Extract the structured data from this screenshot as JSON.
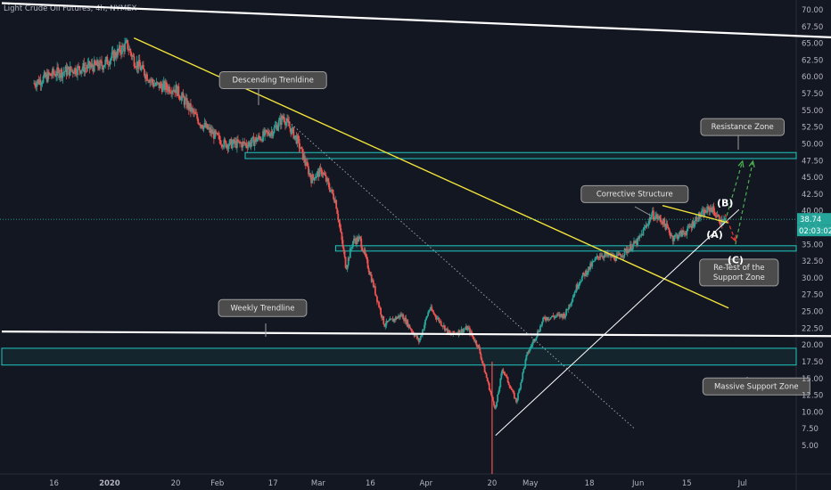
{
  "chart_data": {
    "type": "candlestick",
    "title": "Light Crude Oil Futures, 4h, NYMEX",
    "ylim": [
      2.5,
      71.5
    ],
    "y_ticks": [
      5.0,
      7.5,
      10.0,
      12.5,
      15.0,
      17.5,
      20.0,
      22.5,
      25.0,
      27.5,
      30.0,
      32.5,
      35.0,
      37.5,
      40.0,
      42.5,
      45.0,
      47.5,
      50.0,
      52.5,
      55.0,
      57.5,
      60.0,
      62.5,
      65.0,
      67.5,
      70.0
    ],
    "x_ticks": [
      "16",
      "2020",
      "20",
      "Feb",
      "17",
      "Mar",
      "16",
      "Apr",
      "20",
      "May",
      "18",
      "Jun",
      "15",
      "Jul"
    ],
    "price_path": [
      [
        "2019-12-10",
        59.0
      ],
      [
        "2019-12-16",
        60.5
      ],
      [
        "2019-12-23",
        61.2
      ],
      [
        "2019-12-30",
        61.8
      ],
      [
        "2020-01-06",
        64.8
      ],
      [
        "2020-01-08",
        62.5
      ],
      [
        "2020-01-14",
        58.8
      ],
      [
        "2020-01-20",
        58.2
      ],
      [
        "2020-01-27",
        53.2
      ],
      [
        "2020-02-03",
        50.0
      ],
      [
        "2020-02-10",
        50.0
      ],
      [
        "2020-02-17",
        52.0
      ],
      [
        "2020-02-20",
        54.0
      ],
      [
        "2020-02-24",
        50.5
      ],
      [
        "2020-02-28",
        44.8
      ],
      [
        "2020-03-02",
        46.0
      ],
      [
        "2020-03-06",
        41.5
      ],
      [
        "2020-03-09",
        31.5
      ],
      [
        "2020-03-11",
        35.5
      ],
      [
        "2020-03-13",
        35.8
      ],
      [
        "2020-03-16",
        30.5
      ],
      [
        "2020-03-20",
        23.0
      ],
      [
        "2020-03-25",
        24.5
      ],
      [
        "2020-03-30",
        20.5
      ],
      [
        "2020-04-02",
        25.5
      ],
      [
        "2020-04-08",
        21.5
      ],
      [
        "2020-04-13",
        22.5
      ],
      [
        "2020-04-16",
        19.8
      ],
      [
        "2020-04-20",
        12.0
      ],
      [
        "2020-04-21",
        10.5
      ],
      [
        "2020-04-23",
        16.5
      ],
      [
        "2020-04-27",
        11.5
      ],
      [
        "2020-04-30",
        18.5
      ],
      [
        "2020-05-05",
        24.0
      ],
      [
        "2020-05-11",
        24.5
      ],
      [
        "2020-05-15",
        29.5
      ],
      [
        "2020-05-21",
        33.5
      ],
      [
        "2020-05-26",
        33.0
      ],
      [
        "2020-06-01",
        35.5
      ],
      [
        "2020-06-05",
        39.5
      ],
      [
        "2020-06-08",
        38.5
      ],
      [
        "2020-06-11",
        36.0
      ],
      [
        "2020-06-15",
        37.0
      ],
      [
        "2020-06-18",
        39.0
      ],
      [
        "2020-06-22",
        40.5
      ],
      [
        "2020-06-25",
        38.2
      ],
      [
        "2020-06-26",
        38.74
      ]
    ],
    "current_price": 38.74,
    "countdown": "02:03:02",
    "zones": [
      {
        "name": "Resistance Zone",
        "from": 47.8,
        "to": 48.7,
        "start": "2020-02-09",
        "color": "#21c7c0"
      },
      {
        "name": "Re-Test of the Support Zone",
        "from": 34.0,
        "to": 34.8,
        "start": "2020-03-06",
        "color": "#21c7c0"
      },
      {
        "name": "Massive Support Zone",
        "from": 17.0,
        "to": 19.5,
        "start": "2019-12-01",
        "color": "#21c7c0"
      }
    ],
    "trendlines": [
      {
        "name": "Descending Trendline",
        "color": "#f3e43a",
        "from": [
          "2020-01-08",
          65.8
        ],
        "to": [
          "2020-06-27",
          25.5
        ]
      },
      {
        "name": "Weekly Trendline",
        "color": "#ffffff",
        "from": [
          "2019-12-01",
          22.0
        ],
        "to": [
          "2020-07-31",
          21.3
        ]
      },
      {
        "name": "Long-term resistance",
        "color": "#ffffff",
        "from": [
          "2019-12-01",
          71.0
        ],
        "to": [
          "2020-07-31",
          65.8
        ]
      },
      {
        "name": "Rising support",
        "color": "#ffffff",
        "from": [
          "2020-04-21",
          6.5
        ],
        "to": [
          "2020-06-30",
          40.2
        ]
      },
      {
        "name": "Dotted projection",
        "color": "#9aa0a8",
        "from": [
          "2020-02-20",
          54.0
        ],
        "to": [
          "2020-05-31",
          7.5
        ]
      },
      {
        "name": "Corrective channel top",
        "color": "#f3e43a",
        "from": [
          "2020-06-08",
          40.8
        ],
        "to": [
          "2020-06-27",
          38.2
        ]
      }
    ],
    "annotations": [
      {
        "text": "Descending Trenldine",
        "x": "2020-02-17",
        "y": 59.5
      },
      {
        "text": "Resistance Zone",
        "x": "2020-07-01",
        "y": 52.5
      },
      {
        "text": "Corrective Structure",
        "x": "2020-05-31",
        "y": 42.5
      },
      {
        "text": "Weekly Trendline",
        "x": "2020-02-14",
        "y": 25.5
      },
      {
        "text": "Re-Test of the Support Zone",
        "x": "2020-06-30",
        "y": 30.8
      },
      {
        "text": "Massive Support Zone",
        "x": "2020-07-05",
        "y": 13.8
      }
    ],
    "waves": [
      {
        "label": "(A)",
        "x": "2020-06-23",
        "y": 36.0
      },
      {
        "label": "(B)",
        "x": "2020-06-26",
        "y": 40.7
      },
      {
        "label": "(C)",
        "x": "2020-06-29",
        "y": 32.2
      }
    ],
    "arrows": [
      {
        "color": "#e53935",
        "from": [
          "2020-06-26",
          39.5
        ],
        "to": [
          "2020-06-29",
          35.5
        ]
      },
      {
        "color": "#4caf50",
        "from": [
          "2020-06-26",
          38.4
        ],
        "to": [
          "2020-07-01",
          47.4
        ]
      },
      {
        "color": "#4caf50",
        "from": [
          "2020-06-29",
          35.0
        ],
        "to": [
          "2020-07-04",
          47.4
        ]
      }
    ],
    "colors": {
      "background": "#131722",
      "up": "#26a69a",
      "down": "#ef5350",
      "price_tag": "#26a69a",
      "callout_bg": "#4c4c4c",
      "callout_border": "#9e9e9e"
    }
  }
}
